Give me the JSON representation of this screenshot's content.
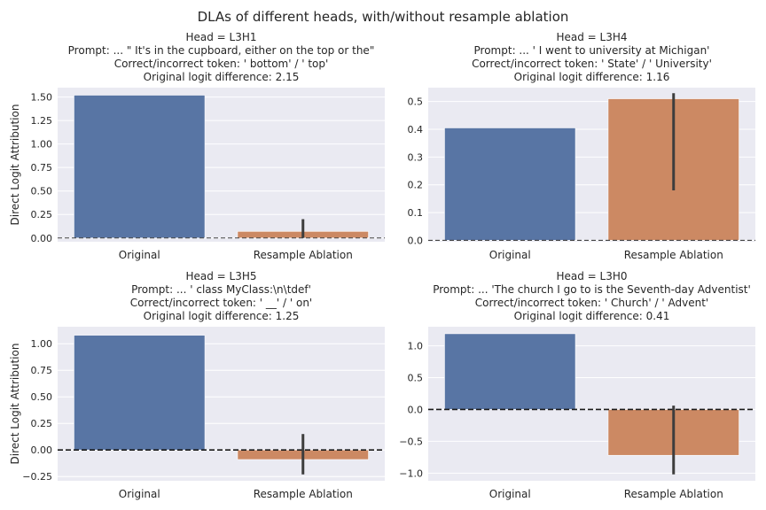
{
  "figure": {
    "suptitle": "DLAs of different heads, with/without resample ablation"
  },
  "colors": {
    "panel_bg": "#eaeaf2",
    "grid": "#ffffff",
    "original_bar": "#5875a4",
    "ablation_bar": "#cc8963",
    "error_bar": "#3d3d3d",
    "zero_line": "#333333"
  },
  "chart_data": [
    {
      "type": "bar",
      "title_lines": [
        "Head = L3H1",
        "Prompt: ... \" It's in the cupboard, either on the top or the\"",
        "Correct/incorrect token: ' bottom' / ' top'",
        "Original logit difference: 2.15"
      ],
      "ylabel": "Direct Logit Attribution",
      "categories": [
        "Original",
        "Resample Ablation"
      ],
      "values": [
        1.52,
        0.07
      ],
      "error_bars": [
        null,
        [
          0.0,
          0.2
        ]
      ],
      "ylim": [
        -0.04,
        1.6
      ],
      "yticks": [
        0.0,
        0.25,
        0.5,
        0.75,
        1.0,
        1.25,
        1.5
      ],
      "ytick_labels": [
        "0.00",
        "0.25",
        "0.50",
        "0.75",
        "1.00",
        "1.25",
        "1.50"
      ],
      "zero_line": "dashed-thin",
      "grid": true
    },
    {
      "type": "bar",
      "title_lines": [
        "Head = L3H4",
        "Prompt: ... ' I went to university at Michigan'",
        "Correct/incorrect token: ' State' / ' University'",
        "Original logit difference: 1.16"
      ],
      "ylabel": "",
      "categories": [
        "Original",
        "Resample Ablation"
      ],
      "values": [
        0.405,
        0.51
      ],
      "error_bars": [
        null,
        [
          0.18,
          0.53
        ]
      ],
      "ylim": [
        -0.005,
        0.55
      ],
      "yticks": [
        0.0,
        0.1,
        0.2,
        0.3,
        0.4,
        0.5
      ],
      "ytick_labels": [
        "0.0",
        "0.1",
        "0.2",
        "0.3",
        "0.4",
        "0.5"
      ],
      "zero_line": "dashed-thin",
      "grid": true
    },
    {
      "type": "bar",
      "title_lines": [
        "Head = L3H5",
        "Prompt: ... ' class MyClass:\\n\\tdef'",
        "Correct/incorrect token: ' __' / ' on'",
        "Original logit difference: 1.25"
      ],
      "ylabel": "Direct Logit Attribution",
      "categories": [
        "Original",
        "Resample Ablation"
      ],
      "values": [
        1.08,
        -0.09
      ],
      "error_bars": [
        null,
        [
          -0.23,
          0.15
        ]
      ],
      "ylim": [
        -0.29,
        1.16
      ],
      "yticks": [
        -0.25,
        0.0,
        0.25,
        0.5,
        0.75,
        1.0
      ],
      "ytick_labels": [
        "−0.25",
        "0.00",
        "0.25",
        "0.50",
        "0.75",
        "1.00"
      ],
      "zero_line": "dashed-thick",
      "grid": true
    },
    {
      "type": "bar",
      "title_lines": [
        "Head = L3H0",
        "Prompt: ... 'The church I go to is the Seventh-day Adventist'",
        "Correct/incorrect token: ' Church' / ' Advent'",
        "Original logit difference: 0.41"
      ],
      "ylabel": "",
      "categories": [
        "Original",
        "Resample Ablation"
      ],
      "values": [
        1.19,
        -0.72
      ],
      "error_bars": [
        null,
        [
          -1.02,
          0.06
        ]
      ],
      "ylim": [
        -1.12,
        1.3
      ],
      "yticks": [
        -1.0,
        -0.5,
        0.0,
        0.5,
        1.0
      ],
      "ytick_labels": [
        "−1.0",
        "−0.5",
        "0.0",
        "0.5",
        "1.0"
      ],
      "zero_line": "dashed-thick",
      "grid": true
    }
  ]
}
